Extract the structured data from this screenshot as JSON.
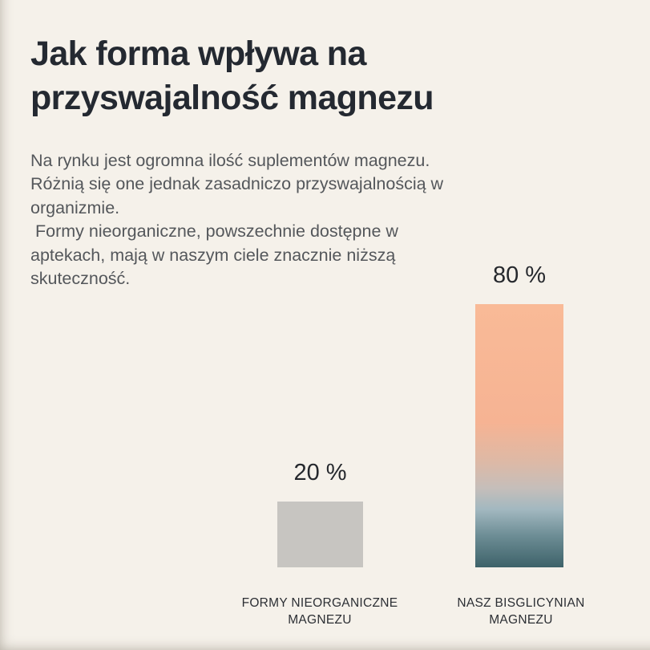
{
  "page": {
    "background_color": "#f5f1ea"
  },
  "header": {
    "title": "Jak forma wpływa na przyswajalność magnezu",
    "title_color": "#242931"
  },
  "intro": {
    "text_color": "#54575b",
    "paragraphs": [
      "Na rynku jest ogromna ilość suplementów magnezu. Różnią się one jednak zasadniczo przyswajalnością w organizmie.",
      " Formy nieorganiczne, powszechnie dostępne w aptekach, mają w naszym ciele znacznie niższą skuteczność."
    ]
  },
  "chart_data": {
    "type": "bar",
    "categories": [
      "FORMY NIEORGANICZNE MAGNEZU",
      "NASZ BISGLICYNIAN MAGNEZU"
    ],
    "values": [
      20,
      80
    ],
    "value_labels": [
      "20 %",
      "80 %"
    ],
    "ylim": [
      0,
      100
    ],
    "grid": false,
    "legend": false,
    "title": "",
    "xlabel": "",
    "ylabel": "",
    "bar_colors": [
      "#c7c5c1",
      {
        "gradient": [
          {
            "stop": 0.0,
            "color": "#f9ba97"
          },
          {
            "stop": 0.45,
            "color": "#f6b393"
          },
          {
            "stop": 0.6,
            "color": "#ddb9a6"
          },
          {
            "stop": 0.7,
            "color": "#c5beba"
          },
          {
            "stop": 0.78,
            "color": "#a2b8c0"
          },
          {
            "stop": 0.88,
            "color": "#6d8d95"
          },
          {
            "stop": 1.0,
            "color": "#3d6269"
          }
        ]
      }
    ]
  }
}
